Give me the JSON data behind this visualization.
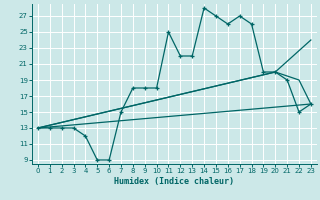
{
  "background_color": "#cce8e8",
  "grid_color": "#ffffff",
  "line_color": "#006666",
  "xlabel": "Humidex (Indice chaleur)",
  "xlim": [
    -0.5,
    23.5
  ],
  "ylim": [
    8.5,
    28.5
  ],
  "yticks": [
    9,
    11,
    13,
    15,
    17,
    19,
    21,
    23,
    25,
    27
  ],
  "xticks": [
    0,
    1,
    2,
    3,
    4,
    5,
    6,
    7,
    8,
    9,
    10,
    11,
    12,
    13,
    14,
    15,
    16,
    17,
    18,
    19,
    20,
    21,
    22,
    23
  ],
  "line_smooth1": {
    "x": [
      0,
      23
    ],
    "y": [
      13,
      16
    ]
  },
  "line_smooth2": {
    "x": [
      0,
      20,
      23
    ],
    "y": [
      13,
      20,
      24
    ]
  },
  "line_smooth3": {
    "x": [
      0,
      20,
      22,
      23
    ],
    "y": [
      13,
      20,
      19,
      16
    ]
  },
  "line_jagged": {
    "x": [
      0,
      1,
      2,
      3,
      4,
      5,
      6,
      7,
      8,
      9,
      10,
      11,
      12,
      13,
      14,
      15,
      16,
      17,
      18,
      19,
      20,
      21,
      22,
      23
    ],
    "y": [
      13,
      13,
      13,
      13,
      12,
      9,
      9,
      15,
      18,
      18,
      18,
      25,
      22,
      22,
      28,
      27,
      26,
      27,
      26,
      20,
      20,
      19,
      15,
      16
    ]
  }
}
